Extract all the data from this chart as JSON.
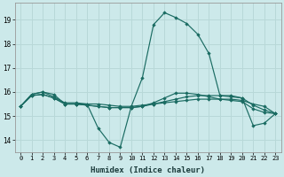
{
  "xlabel": "Humidex (Indice chaleur)",
  "ylabel": "",
  "bg_color": "#cce9ea",
  "grid_color": "#b8d8d8",
  "line_color": "#1a6b62",
  "xlim": [
    -0.5,
    23.5
  ],
  "ylim": [
    13.5,
    19.7
  ],
  "yticks": [
    14,
    15,
    16,
    17,
    18,
    19
  ],
  "xticks": [
    0,
    1,
    2,
    3,
    4,
    5,
    6,
    7,
    8,
    9,
    10,
    11,
    12,
    13,
    14,
    15,
    16,
    17,
    18,
    19,
    20,
    21,
    22,
    23
  ],
  "series": [
    {
      "x": [
        0,
        1,
        2,
        3,
        4,
        5,
        6,
        7,
        8,
        9,
        10,
        11,
        12,
        13,
        14,
        15,
        16,
        17,
        18,
        19,
        20,
        21,
        22,
        23
      ],
      "y": [
        15.4,
        15.9,
        16.0,
        15.9,
        15.5,
        15.5,
        15.5,
        14.5,
        13.9,
        13.7,
        15.4,
        16.6,
        18.8,
        19.3,
        19.1,
        18.85,
        18.4,
        17.6,
        15.85,
        15.85,
        15.75,
        14.6,
        14.7,
        15.1
      ]
    },
    {
      "x": [
        0,
        1,
        2,
        3,
        4,
        5,
        6,
        7,
        8,
        9,
        10,
        11,
        12,
        13,
        14,
        15,
        16,
        17,
        18,
        19,
        20,
        21,
        22,
        23
      ],
      "y": [
        15.4,
        15.9,
        16.0,
        15.8,
        15.55,
        15.55,
        15.5,
        15.5,
        15.45,
        15.4,
        15.4,
        15.45,
        15.5,
        15.55,
        15.6,
        15.65,
        15.7,
        15.7,
        15.7,
        15.7,
        15.65,
        15.5,
        15.4,
        15.1
      ]
    },
    {
      "x": [
        0,
        1,
        2,
        3,
        4,
        5,
        6,
        7,
        8,
        9,
        10,
        11,
        12,
        13,
        14,
        15,
        16,
        17,
        18,
        19,
        20,
        21,
        22,
        23
      ],
      "y": [
        15.4,
        15.85,
        15.9,
        15.75,
        15.5,
        15.5,
        15.45,
        15.4,
        15.35,
        15.35,
        15.35,
        15.4,
        15.5,
        15.6,
        15.7,
        15.8,
        15.85,
        15.85,
        15.85,
        15.8,
        15.75,
        15.45,
        15.25,
        15.1
      ]
    },
    {
      "x": [
        0,
        1,
        2,
        3,
        4,
        5,
        6,
        7,
        8,
        9,
        10,
        11,
        12,
        13,
        14,
        15,
        16,
        17,
        18,
        19,
        20,
        21,
        22,
        23
      ],
      "y": [
        15.4,
        15.85,
        15.9,
        15.75,
        15.5,
        15.5,
        15.45,
        15.4,
        15.35,
        15.35,
        15.35,
        15.4,
        15.55,
        15.75,
        15.95,
        15.95,
        15.9,
        15.8,
        15.7,
        15.65,
        15.6,
        15.3,
        15.15,
        15.1
      ]
    }
  ]
}
